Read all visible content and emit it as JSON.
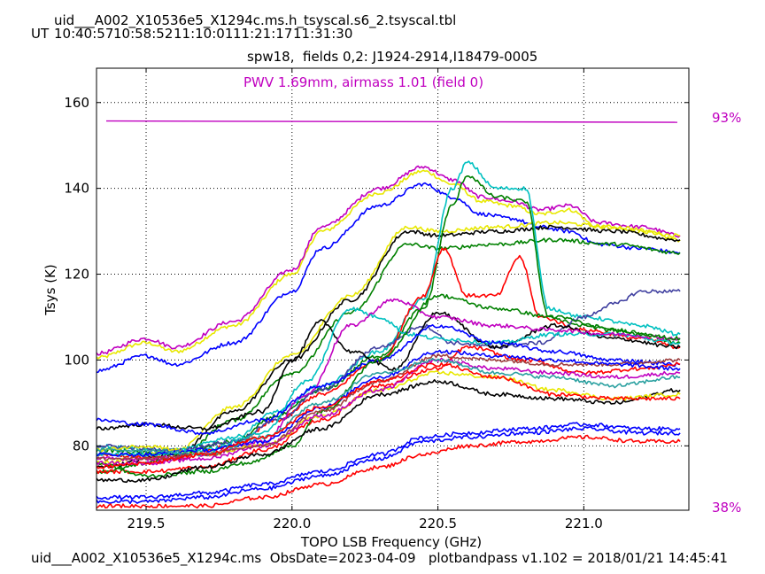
{
  "header": {
    "file_title": "uid___A002_X10536e5_X1294c.ms.h_tsyscal.s6_2.tsyscal.tbl",
    "ut_label": "UT",
    "ut_times": [
      "10:40:57",
      "10:58:52",
      "11:10:01",
      "11:21:17",
      "11:31:30"
    ]
  },
  "footer": {
    "caption": "uid___A002_X10536e5_X1294c.ms  ObsDate=2023-04-09   plotbandpass v1.102 = 2018/01/21 14:45:41"
  },
  "colors": {
    "pwv": "#c000c0",
    "atm_line": "#c000c0",
    "palette": [
      "#0000ff",
      "#ff0000",
      "#008000",
      "#000000",
      "#c000c0",
      "#00c0c0",
      "#e8e800",
      "#2aa0a0",
      "#4040a0",
      "#a04040"
    ]
  },
  "chart_data": {
    "type": "line",
    "title": "spw18,  fields 0,2: J1924-2914,I18479-0005",
    "xlabel": "TOPO LSB Frequency (GHz)",
    "ylabel": "Tsys (K)",
    "xlim": [
      219.33,
      221.36
    ],
    "ylim": [
      65,
      168
    ],
    "xticks": [
      219.5,
      220.0,
      220.5,
      221.0
    ],
    "xtick_labels": [
      "219.5",
      "220.0",
      "220.5",
      "221.0"
    ],
    "yticks": [
      80,
      100,
      120,
      140,
      160
    ],
    "ytick_labels": [
      "80",
      "100",
      "120",
      "140",
      "160"
    ],
    "grid": true,
    "annotation": "PWV 1.69mm, airmass 1.01 (field 0)",
    "atm_transmission": {
      "right_top_label": "93%",
      "right_bottom_label": "38%",
      "line_y": [
        155.7,
        155.4
      ]
    },
    "series": [
      {
        "color": "#e8e800",
        "x": [
          219.33,
          219.5,
          219.6,
          219.8,
          220.0,
          220.1,
          220.3,
          220.45,
          220.55,
          220.65,
          220.75,
          220.85,
          220.95,
          221.05,
          221.2,
          221.33
        ],
        "values": [
          100.5,
          104,
          102,
          108,
          120,
          130,
          139,
          144,
          141,
          137,
          136,
          134,
          135,
          131,
          130,
          128
        ]
      },
      {
        "color": "#c000c0",
        "x": [
          219.33,
          219.5,
          219.6,
          219.8,
          220.0,
          220.1,
          220.3,
          220.45,
          220.55,
          220.65,
          220.75,
          220.85,
          220.95,
          221.05,
          221.2,
          221.33
        ],
        "values": [
          101.5,
          105,
          103,
          109,
          121,
          131,
          140,
          145,
          142,
          138,
          137,
          135,
          136,
          132,
          131,
          129
        ]
      },
      {
        "color": "#0000ff",
        "x": [
          219.33,
          219.5,
          219.6,
          219.8,
          220.0,
          220.1,
          220.3,
          220.45,
          220.55,
          220.65,
          220.75,
          220.85,
          220.95,
          221.05,
          221.2,
          221.33
        ],
        "values": [
          97.5,
          101,
          99,
          104,
          116,
          126,
          136,
          141,
          138,
          134,
          133,
          131,
          130,
          127,
          126,
          125
        ]
      },
      {
        "color": "#000000",
        "x": [
          219.33,
          219.6,
          219.8,
          220.0,
          220.2,
          220.4,
          220.5,
          220.7,
          220.9,
          221.1,
          221.33
        ],
        "values": [
          75,
          78,
          88,
          100,
          114,
          130,
          129,
          130,
          131,
          130,
          128
        ]
      },
      {
        "color": "#e8e800",
        "x": [
          219.33,
          219.6,
          219.8,
          220.0,
          220.2,
          220.4,
          220.5,
          220.7,
          220.9,
          221.1,
          221.33
        ],
        "values": [
          76,
          79,
          89,
          101,
          115,
          131,
          130,
          131,
          132,
          131,
          129
        ]
      },
      {
        "color": "#008000",
        "x": [
          219.33,
          219.6,
          219.8,
          220.0,
          220.2,
          220.4,
          220.5,
          220.7,
          220.9,
          221.1,
          221.33
        ],
        "values": [
          74,
          77,
          86,
          97,
          111,
          127,
          126,
          127,
          128,
          127,
          125
        ]
      },
      {
        "color": "#00c0c0",
        "x": [
          219.33,
          219.6,
          219.8,
          219.95,
          220.1,
          220.3,
          220.45,
          220.55,
          220.6,
          220.7,
          220.8,
          220.88,
          221.0,
          221.2,
          221.33
        ],
        "values": [
          80,
          79,
          82,
          88,
          94,
          102,
          114,
          140,
          146,
          140,
          140,
          112,
          110,
          108,
          106
        ]
      },
      {
        "color": "#008000",
        "x": [
          219.33,
          219.6,
          219.8,
          219.95,
          220.1,
          220.3,
          220.45,
          220.55,
          220.6,
          220.7,
          220.8,
          220.88,
          221.0,
          221.2,
          221.33
        ],
        "values": [
          79,
          78,
          81,
          87,
          93,
          101,
          112,
          136,
          143,
          138,
          137,
          110,
          108,
          106,
          104
        ]
      },
      {
        "color": "#ff0000",
        "x": [
          219.33,
          219.6,
          219.8,
          219.95,
          220.1,
          220.3,
          220.45,
          220.52,
          220.6,
          220.7,
          220.78,
          220.85,
          221.0,
          221.2,
          221.33
        ],
        "values": [
          78,
          77,
          80,
          86,
          92,
          100,
          115,
          126,
          115,
          115,
          124,
          110,
          107,
          105,
          103
        ]
      },
      {
        "color": "#4040a0",
        "x": [
          219.33,
          219.6,
          219.8,
          219.95,
          220.1,
          220.3,
          220.45,
          220.55,
          220.7,
          220.85,
          221.0,
          221.1,
          221.2,
          221.33
        ],
        "values": [
          80,
          79,
          81,
          86,
          93,
          103,
          108,
          104,
          103,
          104,
          110,
          113,
          116,
          116
        ]
      },
      {
        "color": "#000000",
        "x": [
          219.33,
          219.5,
          219.7,
          219.9,
          220.0,
          220.1,
          220.2,
          220.35,
          220.5,
          220.7,
          220.9,
          221.1,
          221.33
        ],
        "values": [
          84,
          85,
          84,
          88,
          100,
          109,
          102,
          98,
          111,
          103,
          108,
          105,
          103
        ]
      },
      {
        "color": "#00c0c0",
        "x": [
          219.33,
          219.5,
          219.7,
          219.9,
          220.05,
          220.2,
          220.3,
          220.4,
          220.5,
          220.7,
          220.9,
          221.1,
          221.33
        ],
        "values": [
          78,
          78,
          79,
          83,
          95,
          112,
          110,
          106,
          105,
          104,
          106,
          106,
          104
        ]
      },
      {
        "color": "#c000c0",
        "x": [
          219.33,
          219.5,
          219.7,
          219.9,
          220.05,
          220.2,
          220.35,
          220.5,
          220.7,
          220.9,
          221.1,
          221.33
        ],
        "values": [
          77,
          77,
          78,
          81,
          92,
          108,
          114,
          110,
          108,
          107,
          106,
          105
        ]
      },
      {
        "color": "#0000ff",
        "x": [
          219.33,
          219.5,
          219.7,
          219.9,
          220.1,
          220.3,
          220.5,
          220.7,
          220.9,
          221.1,
          221.33
        ],
        "values": [
          86,
          85,
          83,
          86,
          94,
          100,
          108,
          104,
          102,
          100,
          99
        ]
      },
      {
        "color": "#ff0000",
        "x": [
          219.33,
          219.5,
          219.7,
          219.9,
          220.1,
          220.3,
          220.5,
          220.6,
          220.8,
          221.0,
          221.2,
          221.33
        ],
        "values": [
          74,
          74,
          75,
          79,
          86,
          94,
          98,
          103,
          100,
          97,
          98,
          99
        ]
      },
      {
        "color": "#008000",
        "x": [
          219.33,
          219.5,
          219.7,
          219.85,
          220.0,
          220.1,
          220.3,
          220.5,
          220.7,
          220.9,
          221.1,
          221.33
        ],
        "values": [
          76,
          73,
          74,
          76,
          80,
          88,
          100,
          115,
          112,
          110,
          107,
          105
        ]
      },
      {
        "color": "#000000",
        "x": [
          219.33,
          219.5,
          219.7,
          219.9,
          220.1,
          220.3,
          220.5,
          220.7,
          220.9,
          221.1,
          221.33
        ],
        "values": [
          72,
          72,
          75,
          78,
          84,
          92,
          95,
          92,
          91,
          90,
          93
        ]
      },
      {
        "color": "#e8e800",
        "x": [
          219.33,
          219.5,
          219.7,
          219.9,
          220.1,
          220.3,
          220.5,
          220.7,
          220.9,
          221.1,
          221.33
        ],
        "values": [
          79,
          80,
          78,
          80,
          87,
          93,
          97,
          96,
          93,
          91,
          92
        ]
      },
      {
        "color": "#c000c0",
        "x": [
          219.33,
          219.5,
          219.7,
          219.9,
          220.1,
          220.3,
          220.5,
          220.7,
          220.9,
          221.1,
          221.33
        ],
        "values": [
          76,
          76,
          77,
          80,
          87,
          93,
          100,
          98,
          97,
          96,
          97
        ]
      },
      {
        "color": "#a04040",
        "x": [
          219.33,
          219.5,
          219.7,
          219.9,
          220.1,
          220.3,
          220.5,
          220.7,
          220.9,
          221.1,
          221.33
        ],
        "values": [
          77,
          77,
          78,
          80,
          88,
          95,
          101,
          100,
          99,
          99,
          100
        ]
      },
      {
        "color": "#0000ff",
        "x": [
          219.33,
          219.5,
          219.7,
          219.9,
          220.1,
          220.3,
          220.5,
          220.7,
          220.9,
          221.1,
          221.33
        ],
        "values": [
          78,
          78,
          79,
          81,
          89,
          96,
          102,
          101,
          100,
          99,
          98
        ]
      },
      {
        "color": "#2aa0a0",
        "x": [
          219.33,
          219.5,
          219.7,
          219.9,
          220.1,
          220.3,
          220.5,
          220.7,
          220.9,
          221.1,
          221.33
        ],
        "values": [
          79,
          79,
          78,
          82,
          90,
          97,
          100,
          97,
          96,
          94,
          96
        ]
      },
      {
        "color": "#ff0000",
        "x": [
          219.33,
          219.5,
          219.7,
          219.9,
          220.1,
          220.3,
          220.5,
          220.7,
          220.9,
          221.1,
          221.33
        ],
        "values": [
          75,
          76,
          78,
          82,
          89,
          95,
          99,
          96,
          92,
          91,
          91
        ]
      },
      {
        "color": "#0000ff",
        "x": [
          219.33,
          219.5,
          219.7,
          219.9,
          220.1,
          220.3,
          220.45,
          220.6,
          220.8,
          221.0,
          221.2,
          221.33
        ],
        "values": [
          68,
          68,
          69,
          71,
          74,
          78,
          82,
          83,
          84,
          85,
          84,
          84
        ]
      },
      {
        "color": "#0000ff",
        "x": [
          219.33,
          219.5,
          219.7,
          219.9,
          220.1,
          220.3,
          220.45,
          220.6,
          220.8,
          221.0,
          221.2,
          221.33
        ],
        "values": [
          67,
          67,
          68,
          70,
          73,
          77,
          81,
          82,
          83,
          84,
          83,
          83
        ]
      },
      {
        "color": "#ff0000",
        "x": [
          219.33,
          219.5,
          219.7,
          219.9,
          220.1,
          220.3,
          220.45,
          220.6,
          220.8,
          221.0,
          221.2,
          221.33
        ],
        "values": [
          66,
          66,
          66,
          68,
          71,
          75,
          78,
          80,
          81,
          82,
          81,
          81
        ]
      }
    ]
  }
}
